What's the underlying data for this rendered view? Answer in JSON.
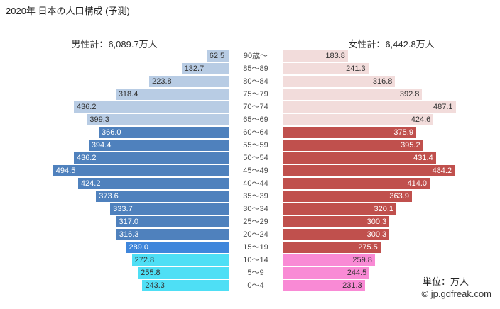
{
  "title": "2020年 日本の人口構成 (予測)",
  "male_total_label": "男性計：6,089.7万人",
  "female_total_label": "女性計：6,442.8万人",
  "unit_label": "単位：万人",
  "copyright": "© jp.gdfreak.com",
  "colors": {
    "male": {
      "elderly": "#b8cce4",
      "adult": "#4f81bd",
      "teen": "#3f86db",
      "child": "#4edff5"
    },
    "male_text": {
      "elderly": "#333333",
      "adult": "#ffffff",
      "teen": "#ffffff",
      "child": "#333333"
    },
    "female": {
      "elderly": "#f2dcdb",
      "adult": "#c0504d",
      "teen": "#c0504d",
      "child": "#f98ad5"
    },
    "female_text": {
      "elderly": "#333333",
      "adult": "#ffffff",
      "teen": "#ffffff",
      "child": "#333333"
    }
  },
  "chart_data": {
    "type": "bar",
    "subtype": "population_pyramid",
    "title": "2020年 日本の人口構成 (予測)",
    "unit": "万人",
    "legend": "none",
    "grid": false,
    "x_axis_max": 500,
    "categories": [
      "90歳〜",
      "85〜89",
      "80〜84",
      "75〜79",
      "70〜74",
      "65〜69",
      "60〜64",
      "55〜59",
      "50〜54",
      "45〜49",
      "40〜44",
      "35〜39",
      "30〜34",
      "25〜29",
      "20〜24",
      "15〜19",
      "10〜14",
      "5〜9",
      "0〜4"
    ],
    "row_groups": [
      "elderly",
      "elderly",
      "elderly",
      "elderly",
      "elderly",
      "elderly",
      "adult",
      "adult",
      "adult",
      "adult",
      "adult",
      "adult",
      "adult",
      "adult",
      "adult",
      "teen",
      "child",
      "child",
      "child"
    ],
    "series": [
      {
        "name": "男性",
        "total": 6089.7,
        "values": [
          62.5,
          132.7,
          223.8,
          318.4,
          436.2,
          399.3,
          366.0,
          394.4,
          436.2,
          494.5,
          424.2,
          373.6,
          333.7,
          317.0,
          316.3,
          289.0,
          272.8,
          255.8,
          243.3
        ]
      },
      {
        "name": "女性",
        "total": 6442.8,
        "values": [
          183.8,
          241.3,
          316.8,
          392.8,
          487.1,
          424.6,
          375.9,
          395.2,
          431.4,
          484.2,
          414.0,
          363.9,
          320.1,
          300.3,
          300.3,
          275.5,
          259.8,
          244.5,
          231.3
        ]
      }
    ]
  }
}
